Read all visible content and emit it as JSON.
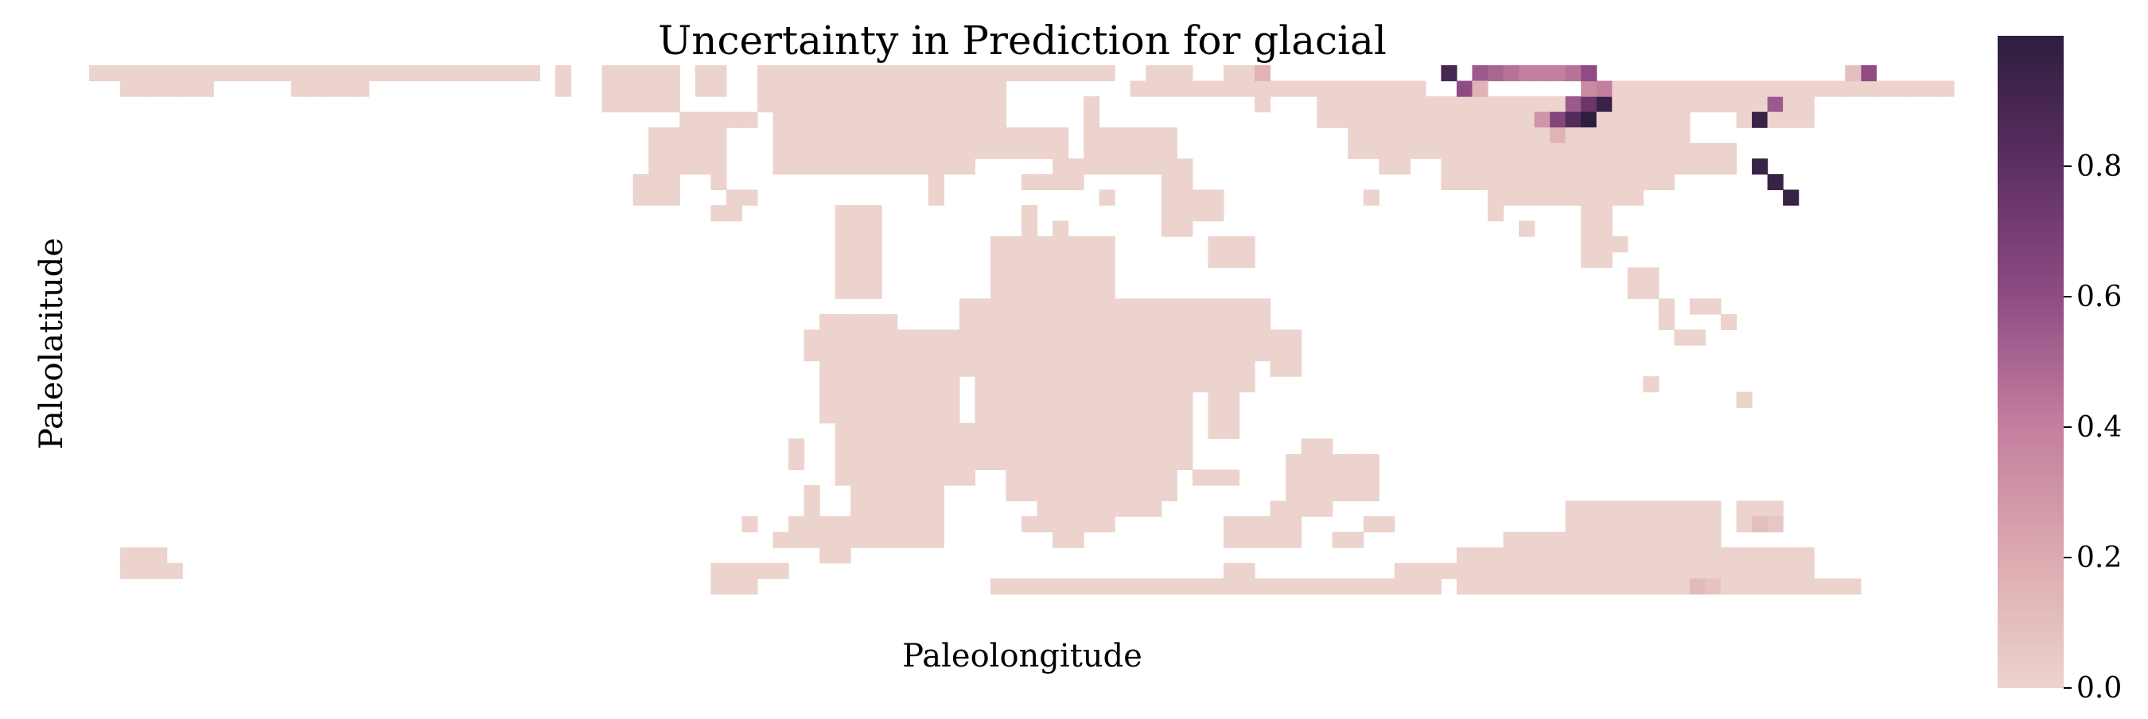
{
  "chart_data": {
    "type": "heatmap",
    "title": "Uncertainty in Prediction for glacial",
    "xlabel": "Paleolongitude",
    "ylabel": "Paleolatitude",
    "grid": false,
    "grid_shape": {
      "cols": 120,
      "rows": 36
    },
    "colorbar": {
      "vmin": 0.0,
      "vmax": 1.0,
      "ticks": [
        0.0,
        0.2,
        0.4,
        0.6,
        0.8
      ],
      "tick_labels": [
        "0.0",
        "0.2",
        "0.4",
        "0.6",
        "0.8"
      ],
      "colors": [
        "#ecd3cd",
        "#dcaab0",
        "#c47f9f",
        "#8f4c84",
        "#5d2f63",
        "#2d1e3e"
      ],
      "placement": "right"
    },
    "land_value": 0.0,
    "land_rects": [
      [
        0,
        0,
        28,
        0
      ],
      [
        2,
        1,
        7,
        1
      ],
      [
        13,
        1,
        17,
        1
      ],
      [
        30,
        0,
        30,
        1
      ],
      [
        33,
        0,
        37,
        2
      ],
      [
        39,
        0,
        40,
        1
      ],
      [
        38,
        3,
        42,
        3
      ],
      [
        36,
        4,
        39,
        6
      ],
      [
        35,
        7,
        37,
        8
      ],
      [
        40,
        4,
        40,
        7
      ],
      [
        41,
        8,
        42,
        8
      ],
      [
        43,
        1,
        44,
        2
      ],
      [
        43,
        0,
        65,
        0
      ],
      [
        44,
        1,
        56,
        6
      ],
      [
        57,
        1,
        58,
        5
      ],
      [
        59,
        4,
        62,
        5
      ],
      [
        64,
        2,
        64,
        3
      ],
      [
        54,
        7,
        54,
        8
      ],
      [
        48,
        9,
        50,
        14
      ],
      [
        40,
        9,
        41,
        9
      ],
      [
        67,
        1,
        78,
        1
      ],
      [
        68,
        0,
        70,
        0
      ],
      [
        73,
        0,
        74,
        0
      ],
      [
        75,
        2,
        75,
        2
      ],
      [
        64,
        4,
        69,
        6
      ],
      [
        62,
        6,
        63,
        7
      ],
      [
        60,
        7,
        61,
        7
      ],
      [
        65,
        8,
        65,
        8
      ],
      [
        69,
        7,
        70,
        10
      ],
      [
        71,
        8,
        72,
        9
      ],
      [
        72,
        11,
        74,
        12
      ],
      [
        70,
        6,
        70,
        6
      ],
      [
        79,
        1,
        85,
        3
      ],
      [
        81,
        4,
        85,
        5
      ],
      [
        83,
        6,
        84,
        6
      ],
      [
        82,
        8,
        82,
        8
      ],
      [
        86,
        2,
        108,
        2
      ],
      [
        86,
        3,
        102,
        5
      ],
      [
        87,
        6,
        101,
        7
      ],
      [
        90,
        8,
        99,
        8
      ],
      [
        96,
        9,
        97,
        12
      ],
      [
        98,
        11,
        98,
        11
      ],
      [
        99,
        13,
        100,
        14
      ],
      [
        101,
        15,
        101,
        16
      ],
      [
        103,
        15,
        104,
        15
      ],
      [
        102,
        17,
        103,
        17
      ],
      [
        105,
        16,
        105,
        16
      ],
      [
        96,
        1,
        120,
        1
      ],
      [
        106,
        2,
        110,
        3
      ],
      [
        102,
        5,
        105,
        6
      ],
      [
        90,
        9,
        90,
        9
      ],
      [
        92,
        10,
        92,
        10
      ],
      [
        58,
        11,
        65,
        14
      ],
      [
        56,
        15,
        75,
        17
      ],
      [
        56,
        18,
        71,
        19
      ],
      [
        57,
        20,
        70,
        25
      ],
      [
        59,
        26,
        69,
        27
      ],
      [
        61,
        28,
        68,
        28
      ],
      [
        60,
        29,
        65,
        29
      ],
      [
        62,
        30,
        63,
        30
      ],
      [
        70,
        15,
        74,
        20
      ],
      [
        72,
        21,
        73,
        23
      ],
      [
        74,
        18,
        76,
        18
      ],
      [
        76,
        17,
        77,
        19
      ],
      [
        71,
        26,
        73,
        26
      ],
      [
        66,
        15,
        67,
        16
      ],
      [
        60,
        9,
        60,
        10
      ],
      [
        62,
        10,
        62,
        10
      ],
      [
        47,
        16,
        51,
        16
      ],
      [
        46,
        17,
        55,
        18
      ],
      [
        47,
        19,
        55,
        22
      ],
      [
        48,
        23,
        56,
        26
      ],
      [
        49,
        27,
        54,
        30
      ],
      [
        45,
        24,
        45,
        25
      ],
      [
        46,
        27,
        46,
        28
      ],
      [
        45,
        29,
        46,
        30
      ],
      [
        47,
        29,
        48,
        31
      ],
      [
        42,
        29,
        42,
        29
      ],
      [
        41,
        32,
        44,
        32
      ],
      [
        40,
        33,
        40,
        33
      ],
      [
        44,
        30,
        44,
        30
      ],
      [
        58,
        33,
        86,
        33
      ],
      [
        73,
        32,
        74,
        32
      ],
      [
        80,
        30,
        81,
        30
      ],
      [
        82,
        29,
        83,
        29
      ],
      [
        73,
        29,
        77,
        30
      ],
      [
        76,
        28,
        79,
        28
      ],
      [
        77,
        25,
        82,
        27
      ],
      [
        78,
        24,
        79,
        24
      ],
      [
        84,
        32,
        87,
        32
      ],
      [
        88,
        31,
        110,
        33
      ],
      [
        91,
        30,
        104,
        30
      ],
      [
        95,
        28,
        104,
        29
      ],
      [
        106,
        28,
        108,
        29
      ],
      [
        111,
        33,
        113,
        33
      ],
      [
        100,
        20,
        100,
        20
      ],
      [
        106,
        21,
        106,
        21
      ],
      [
        2,
        31,
        4,
        32
      ],
      [
        5,
        32,
        5,
        32
      ],
      [
        40,
        32,
        42,
        33
      ]
    ],
    "hot_cells": [
      [
        87,
        0,
        0.9
      ],
      [
        88,
        1,
        0.6
      ],
      [
        89,
        0,
        0.55
      ],
      [
        90,
        0,
        0.5
      ],
      [
        91,
        0,
        0.45
      ],
      [
        92,
        0,
        0.4
      ],
      [
        93,
        0,
        0.4
      ],
      [
        94,
        0,
        0.4
      ],
      [
        95,
        0,
        0.45
      ],
      [
        96,
        0,
        0.6
      ],
      [
        96,
        1,
        0.35
      ],
      [
        97,
        1,
        0.4
      ],
      [
        89,
        1,
        0.15
      ],
      [
        96,
        2,
        0.75
      ],
      [
        97,
        2,
        0.95
      ],
      [
        95,
        2,
        0.55
      ],
      [
        94,
        3,
        0.65
      ],
      [
        95,
        3,
        0.85
      ],
      [
        96,
        3,
        1.0
      ],
      [
        93,
        3,
        0.3
      ],
      [
        94,
        4,
        0.15
      ],
      [
        108,
        2,
        0.55
      ],
      [
        107,
        3,
        0.95
      ],
      [
        114,
        0,
        0.6
      ],
      [
        113,
        0,
        0.1
      ],
      [
        75,
        0,
        0.15
      ],
      [
        107,
        6,
        0.95
      ],
      [
        108,
        7,
        0.95
      ],
      [
        109,
        8,
        0.95
      ],
      [
        107,
        29,
        0.1
      ],
      [
        103,
        33,
        0.12
      ],
      [
        104,
        33,
        0.08
      ],
      [
        108,
        29,
        0.06
      ]
    ]
  }
}
